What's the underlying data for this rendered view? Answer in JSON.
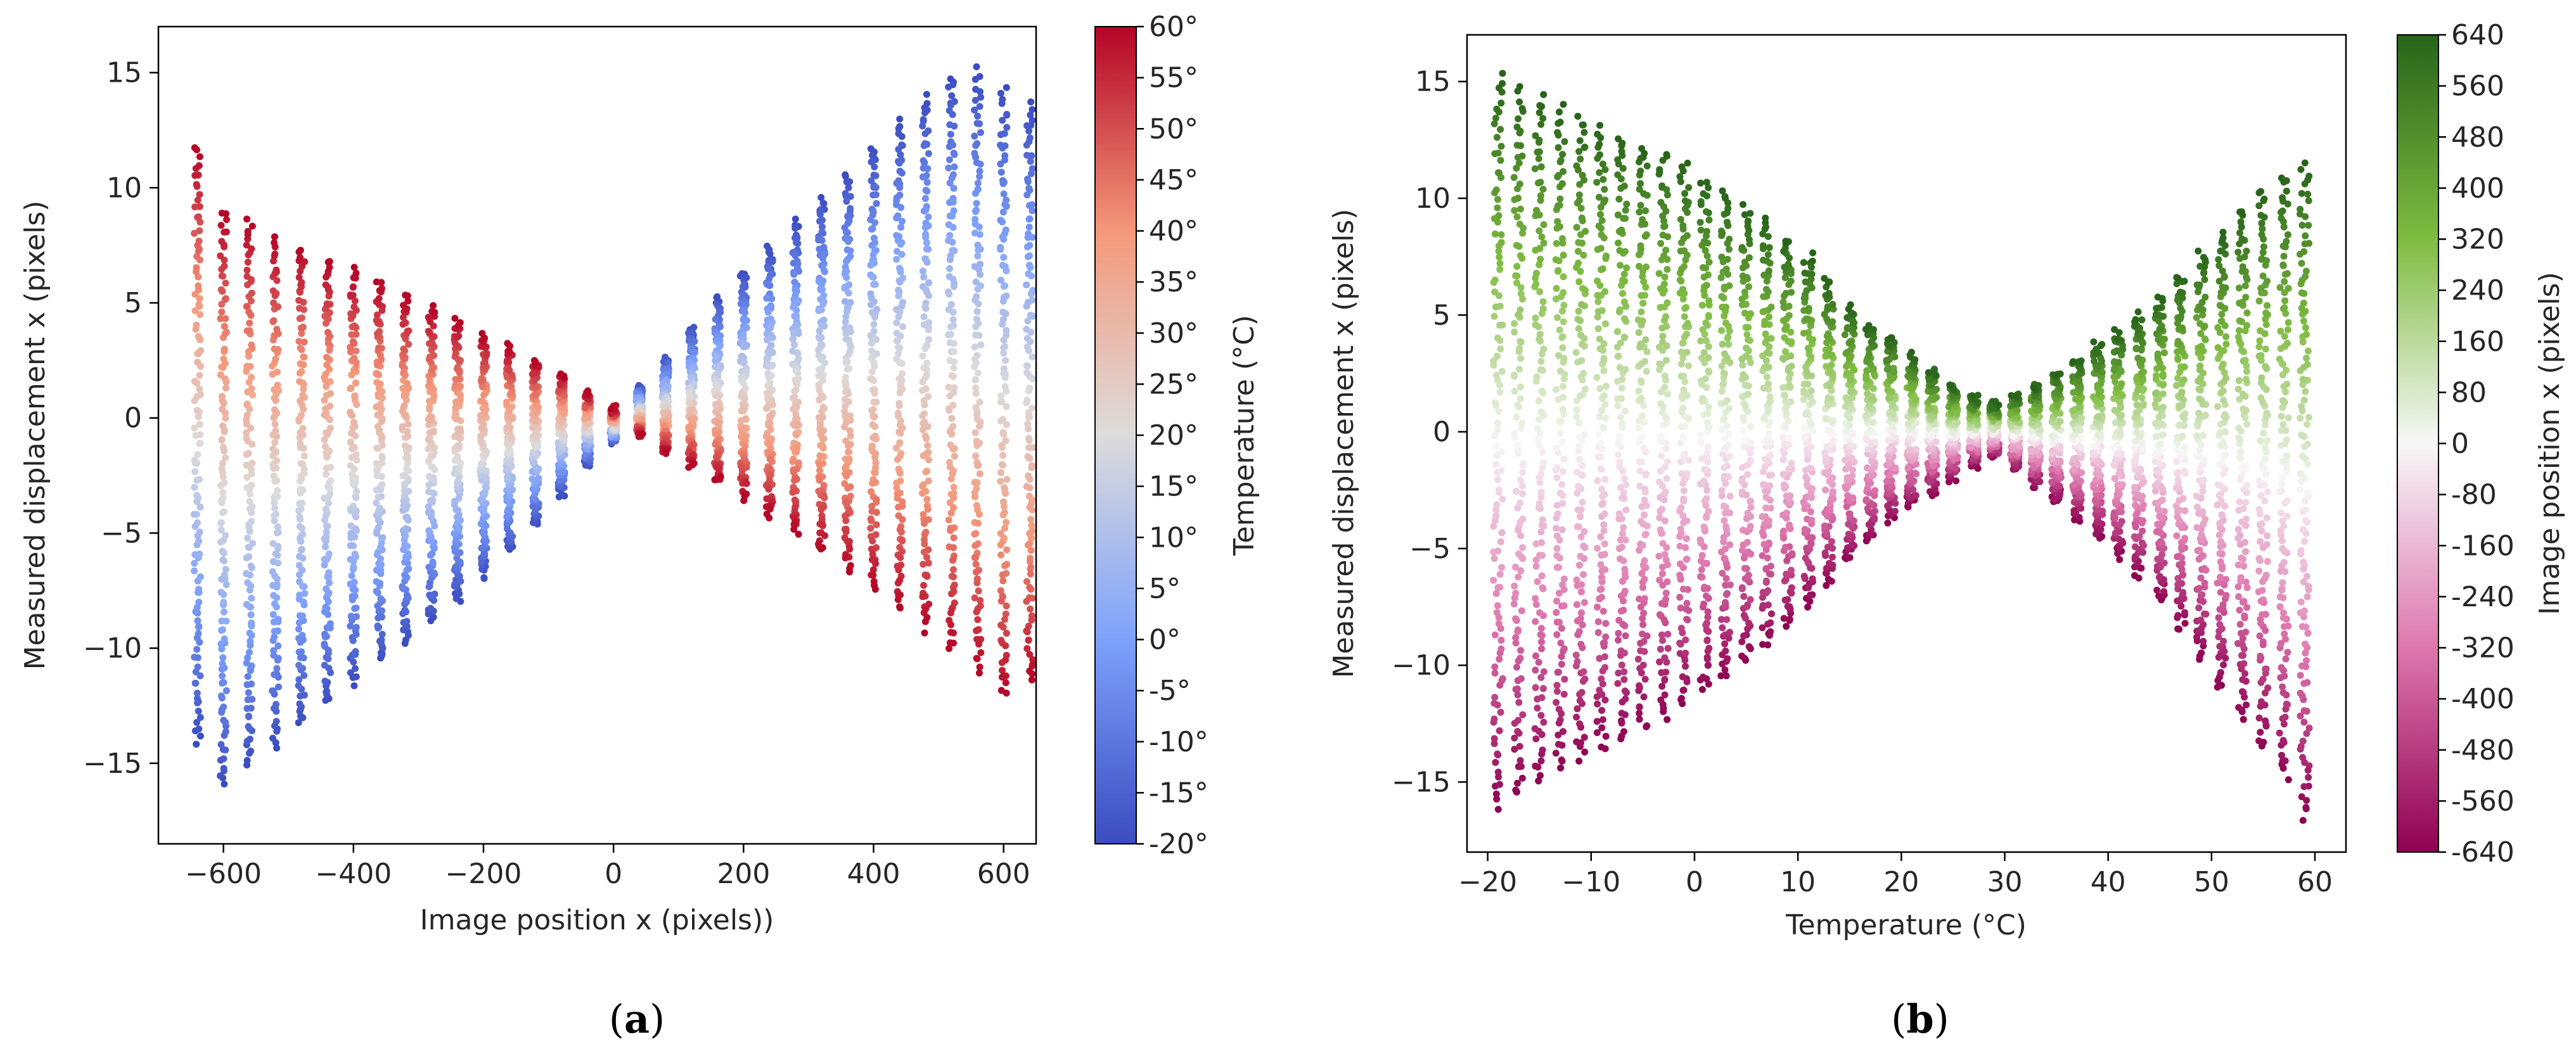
{
  "chart_data": [
    {
      "type": "scatter",
      "panel_label": {
        "open": "(",
        "letter": "a",
        "close": ")"
      },
      "xlabel": "Image position x (pixels))",
      "ylabel": "Measured displacement x (pixels)",
      "xlim": [
        -700,
        650
      ],
      "ylim": [
        -18.5,
        17
      ],
      "xticks": [
        -600,
        -400,
        -200,
        0,
        200,
        400,
        600
      ],
      "xtick_labels": [
        "−600",
        "−400",
        "−200",
        "0",
        "200",
        "400",
        "600"
      ],
      "yticks": [
        -15,
        -10,
        -5,
        0,
        5,
        10,
        15
      ],
      "ytick_labels": [
        "−15",
        "−10",
        "−5",
        "0",
        "5",
        "10",
        "15"
      ],
      "color_encoding": "Temperature (°C)",
      "colormap": "coolwarm",
      "colorbar": {
        "label": "Temperature (°C)",
        "range": [
          -20,
          60
        ],
        "ticks": [
          -20,
          -15,
          -10,
          -5,
          0,
          5,
          10,
          15,
          20,
          25,
          30,
          35,
          40,
          45,
          50,
          55,
          60
        ],
        "tick_labels": [
          "-20°",
          "-15°",
          "-10°",
          "-5°",
          "0°",
          "5°",
          "10°",
          "15°",
          "20°",
          "25°",
          "30°",
          "35°",
          "40°",
          "45°",
          "50°",
          "55°",
          "60°"
        ],
        "colors": [
          "#3b4cc0",
          "#7ea1fb",
          "#dddcdc",
          "#f4987a",
          "#b40426"
        ]
      },
      "series_description": "Vertical point columns at image positions every 40 px from -640 to 640; each column spans displacement from the -20° value to the 60° value",
      "columns_x": [
        -640,
        -600,
        -560,
        -520,
        -480,
        -440,
        -400,
        -360,
        -320,
        -280,
        -240,
        -200,
        -160,
        -120,
        -80,
        -40,
        0,
        40,
        80,
        120,
        160,
        200,
        240,
        280,
        320,
        360,
        400,
        440,
        480,
        520,
        560,
        600,
        640
      ],
      "column_hot_end_y": [
        11.7,
        9.0,
        8.5,
        7.9,
        7.4,
        6.9,
        6.4,
        5.9,
        5.3,
        4.8,
        4.2,
        3.6,
        3.1,
        2.5,
        1.9,
        1.1,
        0.4,
        -0.8,
        -1.5,
        -2.1,
        -2.8,
        -3.5,
        -4.3,
        -5.0,
        -5.8,
        -6.6,
        -7.4,
        -8.3,
        -9.2,
        -10.1,
        -11.0,
        -12.0,
        -11.5
      ],
      "column_cold_end_y": [
        -14.0,
        -16.0,
        -15.1,
        -14.2,
        -13.3,
        -12.4,
        -11.5,
        -10.6,
        -9.7,
        -8.8,
        -7.9,
        -6.9,
        -5.8,
        -4.6,
        -3.3,
        -2.0,
        -1.0,
        1.3,
        2.6,
        3.9,
        5.2,
        6.3,
        7.4,
        8.5,
        9.6,
        10.7,
        11.8,
        12.9,
        14.0,
        14.9,
        15.1,
        14.2,
        13.6
      ]
    },
    {
      "type": "scatter",
      "panel_label": {
        "open": "(",
        "letter": "b",
        "close": ")"
      },
      "xlabel": "Temperature (°C)",
      "ylabel": "Measured displacement x (pixels)",
      "xlim": [
        -22,
        63
      ],
      "ylim": [
        -18,
        17
      ],
      "xticks": [
        -20,
        -10,
        0,
        10,
        20,
        30,
        40,
        50,
        60
      ],
      "xtick_labels": [
        "−20",
        "−10",
        "0",
        "10",
        "20",
        "30",
        "40",
        "50",
        "60"
      ],
      "yticks": [
        -15,
        -10,
        -5,
        0,
        5,
        10,
        15
      ],
      "ytick_labels": [
        "−15",
        "−10",
        "−5",
        "0",
        "5",
        "10",
        "15"
      ],
      "color_encoding": "Image position x (pixels)",
      "colormap": "PiYG",
      "colorbar": {
        "label": "Image position x (pixels)",
        "range": [
          -640,
          640
        ],
        "ticks": [
          -640,
          -560,
          -480,
          -400,
          -320,
          -240,
          -160,
          -80,
          0,
          80,
          160,
          240,
          320,
          400,
          480,
          560,
          640
        ],
        "tick_labels": [
          "-640",
          "-560",
          "-480",
          "-400",
          "-320",
          "-240",
          "-160",
          "-80",
          "0",
          "80",
          "160",
          "240",
          "320",
          "400",
          "480",
          "560",
          "640"
        ],
        "colors": [
          "#8e0152",
          "#de77ae",
          "#f7f7f7",
          "#7fbc41",
          "#276419"
        ]
      },
      "series_description": "Vertical point columns at each temperature step; at low temperatures positive image positions (green) have positive displacement, and the sign flips around 28 °C",
      "columns_x": [
        -19,
        -17,
        -15,
        -13,
        -11,
        -9,
        -7,
        -5,
        -3,
        -1,
        1,
        3,
        5,
        7,
        9,
        11,
        13,
        15,
        17,
        19,
        21,
        23,
        25,
        27,
        29,
        31,
        33,
        35,
        37,
        39,
        41,
        43,
        45,
        47,
        49,
        51,
        53,
        55,
        57,
        59
      ],
      "column_top_y": [
        15.2,
        14.7,
        14.3,
        13.9,
        13.5,
        13.1,
        12.7,
        12.3,
        11.9,
        11.4,
        10.8,
        10.2,
        9.6,
        9.0,
        8.3,
        7.5,
        6.5,
        5.4,
        4.6,
        4.0,
        3.3,
        2.6,
        2.0,
        1.5,
        1.2,
        1.6,
        2.0,
        2.5,
        3.1,
        3.7,
        4.3,
        5.0,
        5.8,
        6.7,
        7.7,
        8.6,
        9.5,
        10.4,
        11.0,
        11.5
      ],
      "column_bottom_y": [
        -16.0,
        -15.5,
        -15.0,
        -14.5,
        -14.1,
        -13.6,
        -13.2,
        -12.7,
        -12.2,
        -11.7,
        -11.1,
        -10.5,
        -9.8,
        -9.1,
        -8.3,
        -7.4,
        -6.5,
        -5.5,
        -4.6,
        -3.8,
        -3.2,
        -2.6,
        -2.0,
        -1.4,
        -1.0,
        -1.6,
        -2.3,
        -3.0,
        -3.7,
        -4.5,
        -5.3,
        -6.2,
        -7.3,
        -8.4,
        -9.7,
        -11.0,
        -12.3,
        -13.5,
        -14.8,
        -16.5
      ]
    }
  ]
}
